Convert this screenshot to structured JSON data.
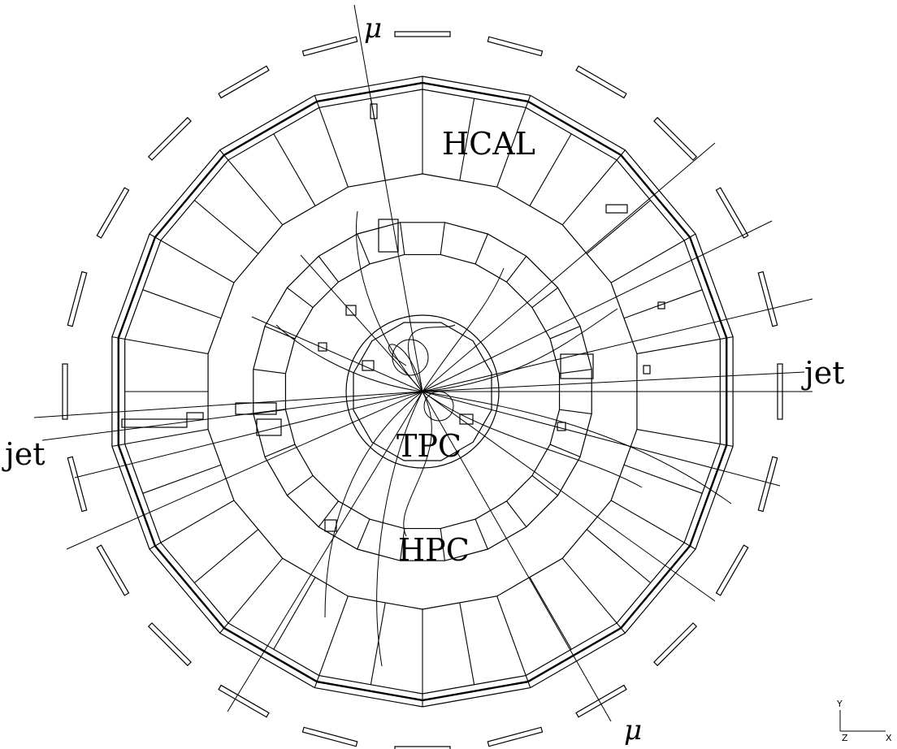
{
  "labels": {
    "hcal": "HCAL",
    "tpc": "TPC",
    "hpc": "HPC",
    "jet_left": "jet",
    "jet_right": "jet",
    "mu_top": "μ",
    "mu_bottom": "μ"
  },
  "axes": {
    "y": "Y",
    "z": "Z",
    "x": "X"
  }
}
